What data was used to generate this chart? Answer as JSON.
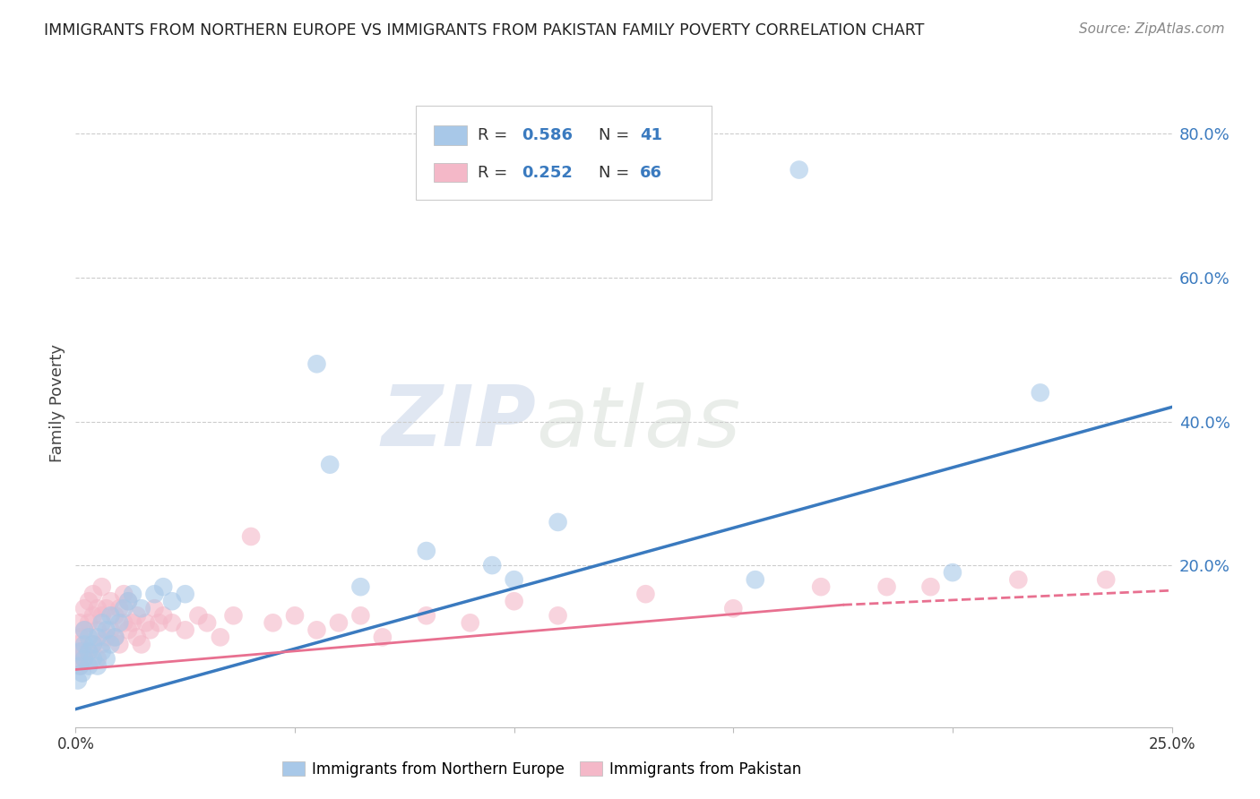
{
  "title": "IMMIGRANTS FROM NORTHERN EUROPE VS IMMIGRANTS FROM PAKISTAN FAMILY POVERTY CORRELATION CHART",
  "source": "Source: ZipAtlas.com",
  "ylabel": "Family Poverty",
  "y_tick_labels": [
    "20.0%",
    "40.0%",
    "60.0%",
    "80.0%"
  ],
  "y_tick_values": [
    0.2,
    0.4,
    0.6,
    0.8
  ],
  "xlim": [
    0.0,
    0.25
  ],
  "ylim": [
    -0.025,
    0.875
  ],
  "blue_label": "Immigrants from Northern Europe",
  "pink_label": "Immigrants from Pakistan",
  "blue_R": 0.586,
  "blue_N": 41,
  "pink_R": 0.252,
  "pink_N": 66,
  "blue_color": "#a8c8e8",
  "pink_color": "#f4b8c8",
  "blue_line_color": "#3a7abf",
  "pink_line_color": "#e87090",
  "watermark_zip": "ZIP",
  "watermark_atlas": "atlas",
  "blue_scatter_x": [
    0.0005,
    0.001,
    0.001,
    0.0015,
    0.002,
    0.002,
    0.002,
    0.003,
    0.003,
    0.003,
    0.004,
    0.004,
    0.005,
    0.005,
    0.006,
    0.006,
    0.007,
    0.007,
    0.008,
    0.008,
    0.009,
    0.01,
    0.011,
    0.012,
    0.013,
    0.015,
    0.018,
    0.02,
    0.022,
    0.025,
    0.055,
    0.058,
    0.065,
    0.08,
    0.095,
    0.1,
    0.11,
    0.155,
    0.165,
    0.2,
    0.22
  ],
  "blue_scatter_y": [
    0.04,
    0.06,
    0.08,
    0.05,
    0.07,
    0.09,
    0.11,
    0.06,
    0.08,
    0.1,
    0.07,
    0.09,
    0.06,
    0.1,
    0.08,
    0.12,
    0.07,
    0.11,
    0.09,
    0.13,
    0.1,
    0.12,
    0.14,
    0.15,
    0.16,
    0.14,
    0.16,
    0.17,
    0.15,
    0.16,
    0.48,
    0.34,
    0.17,
    0.22,
    0.2,
    0.18,
    0.26,
    0.18,
    0.75,
    0.19,
    0.44
  ],
  "pink_scatter_x": [
    0.0002,
    0.0005,
    0.001,
    0.001,
    0.001,
    0.0015,
    0.002,
    0.002,
    0.002,
    0.003,
    0.003,
    0.003,
    0.004,
    0.004,
    0.004,
    0.005,
    0.005,
    0.005,
    0.006,
    0.006,
    0.006,
    0.007,
    0.007,
    0.008,
    0.008,
    0.009,
    0.009,
    0.01,
    0.01,
    0.011,
    0.011,
    0.012,
    0.012,
    0.013,
    0.014,
    0.014,
    0.015,
    0.016,
    0.017,
    0.018,
    0.019,
    0.02,
    0.022,
    0.025,
    0.028,
    0.03,
    0.033,
    0.036,
    0.04,
    0.045,
    0.05,
    0.055,
    0.06,
    0.065,
    0.07,
    0.08,
    0.09,
    0.1,
    0.11,
    0.13,
    0.15,
    0.17,
    0.185,
    0.195,
    0.215,
    0.235
  ],
  "pink_scatter_y": [
    0.07,
    0.09,
    0.06,
    0.1,
    0.12,
    0.08,
    0.07,
    0.11,
    0.14,
    0.08,
    0.12,
    0.15,
    0.09,
    0.13,
    0.16,
    0.07,
    0.11,
    0.14,
    0.09,
    0.13,
    0.17,
    0.1,
    0.14,
    0.11,
    0.15,
    0.1,
    0.13,
    0.09,
    0.14,
    0.12,
    0.16,
    0.11,
    0.15,
    0.12,
    0.1,
    0.13,
    0.09,
    0.12,
    0.11,
    0.14,
    0.12,
    0.13,
    0.12,
    0.11,
    0.13,
    0.12,
    0.1,
    0.13,
    0.24,
    0.12,
    0.13,
    0.11,
    0.12,
    0.13,
    0.1,
    0.13,
    0.12,
    0.15,
    0.13,
    0.16,
    0.14,
    0.17,
    0.17,
    0.17,
    0.18,
    0.18
  ],
  "blue_line_x": [
    0.0,
    0.25
  ],
  "blue_line_y": [
    0.0,
    0.42
  ],
  "pink_solid_line_x": [
    0.0,
    0.175
  ],
  "pink_solid_line_y": [
    0.055,
    0.145
  ],
  "pink_dashed_line_x": [
    0.175,
    0.25
  ],
  "pink_dashed_line_y": [
    0.145,
    0.165
  ]
}
